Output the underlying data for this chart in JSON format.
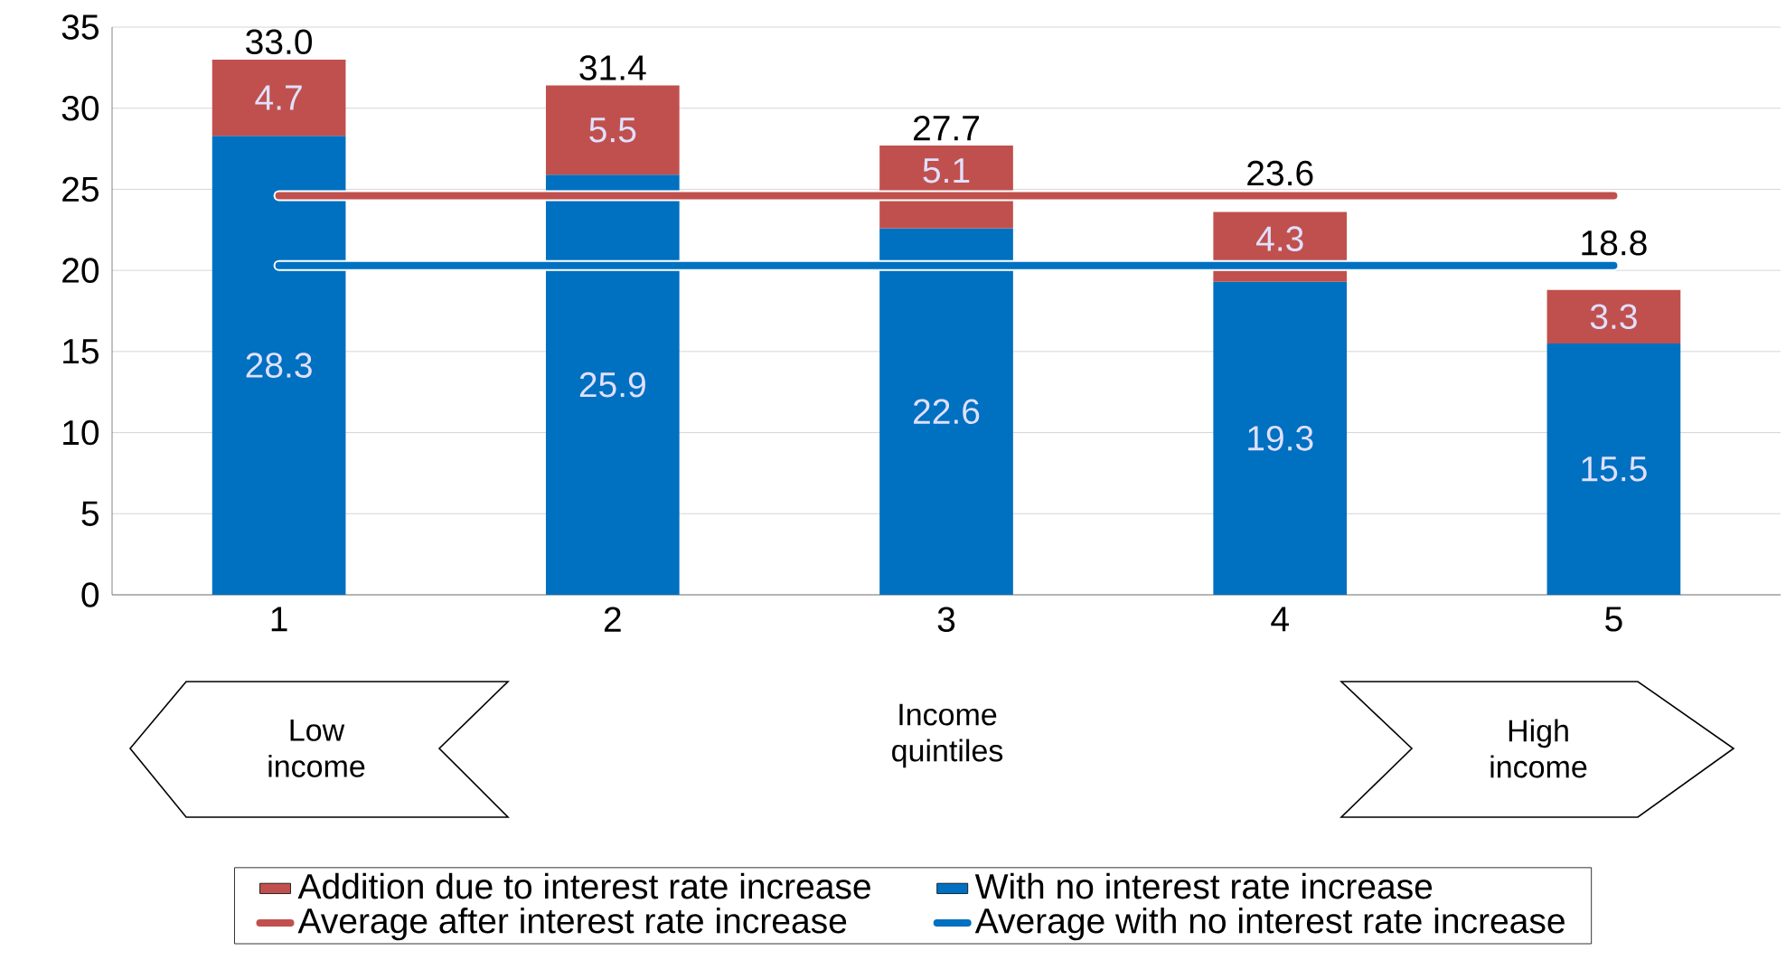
{
  "chart_data": {
    "type": "bar",
    "stacked": true,
    "categories": [
      "1",
      "2",
      "3",
      "4",
      "5"
    ],
    "xlabel": "Income quintiles",
    "annotations": [
      "Low income",
      "High income"
    ],
    "series": [
      {
        "name": "With no interest rate increase",
        "color": "#0070c0",
        "values": [
          28.3,
          25.9,
          22.6,
          19.3,
          15.5
        ],
        "value_labels": [
          "28.3",
          "25.9",
          "22.6",
          "19.3",
          "15.5"
        ]
      },
      {
        "name": "Addition due to interest rate increase",
        "color": "#c0504d",
        "values": [
          4.7,
          5.5,
          5.1,
          4.3,
          3.3
        ],
        "value_labels": [
          "4.7",
          "5.5",
          "5.1",
          "4.3",
          "3.3"
        ]
      },
      {
        "name": "Average after interest rate increase",
        "type": "line",
        "color": "#c0504d",
        "values": [
          24.6,
          24.6,
          24.6,
          24.6,
          24.6
        ]
      },
      {
        "name": "Average with no interest rate increase",
        "type": "line",
        "color": "#0070c0",
        "values": [
          20.3,
          20.3,
          20.3,
          20.3,
          20.3
        ]
      }
    ],
    "totals": [
      "33.0",
      "31.4",
      "27.7",
      "23.6",
      "18.8"
    ],
    "ylim": [
      0,
      35
    ],
    "yticks": [
      0,
      5,
      10,
      15,
      20,
      25,
      30,
      35
    ],
    "grid": "y",
    "legend": "bottom",
    "marker": "none",
    "line_style": "solid"
  }
}
